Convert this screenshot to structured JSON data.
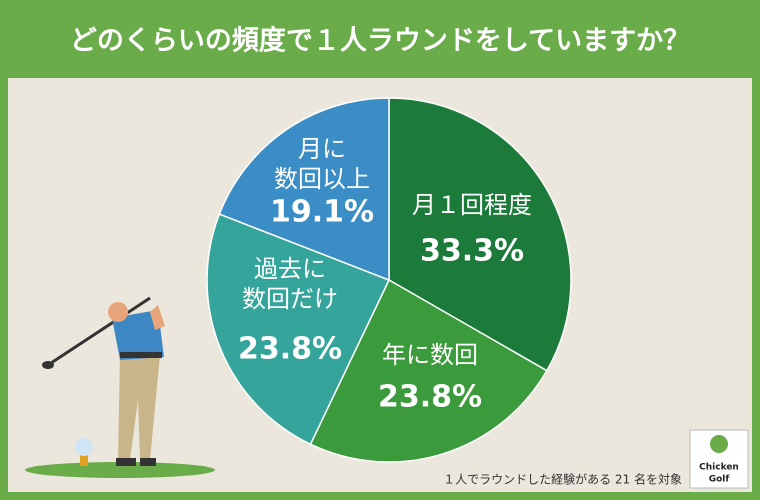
{
  "chart_data": {
    "type": "pie",
    "title": "どのくらいの頻度で１人ラウンドをしていますか？",
    "categories": [
      "月１回程度",
      "年に数回",
      "過去に数回だけ",
      "月に数回以上"
    ],
    "values": [
      33.3,
      23.8,
      23.8,
      19.1
    ],
    "value_labels": [
      "33.3%",
      "23.8%",
      "23.8%",
      "19.1%"
    ],
    "colors": [
      "#1c7a3a",
      "#3a9a3c",
      "#35a59c",
      "#3b8dc5"
    ],
    "note": "１人でラウンドした経験がある 21 名を対象"
  },
  "logo": {
    "lines": [
      "Chicken",
      "Golf"
    ]
  }
}
